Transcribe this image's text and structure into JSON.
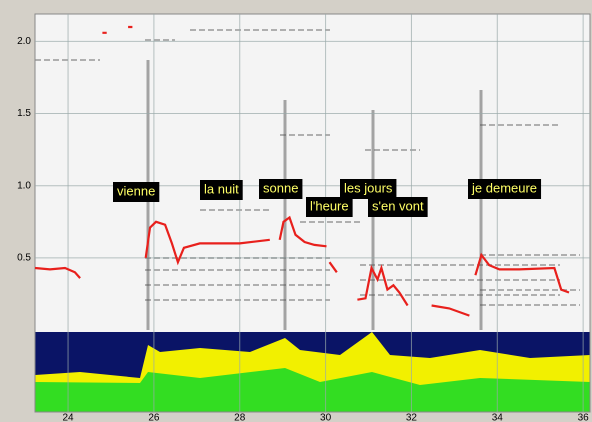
{
  "chart_data": {
    "type": "spectrogram",
    "x": [
      23.23,
      23.58,
      23.93,
      24.16,
      24.28,
      null,
      24.8,
      24.9,
      null,
      25.4,
      25.5,
      null,
      25.81,
      25.91,
      26.05,
      26.26,
      26.42,
      26.56,
      26.7,
      27.07,
      28.0,
      28.7,
      null,
      28.93,
      29.02,
      29.16,
      29.3,
      29.51,
      29.74,
      30.02,
      null,
      30.09,
      30.26,
      null,
      30.74,
      30.93,
      31.07,
      31.21,
      31.3,
      31.44,
      31.58,
      31.72,
      31.91,
      null,
      32.47,
      32.88,
      33.35,
      null,
      33.49,
      33.63,
      33.81,
      34.05,
      34.51,
      35.33,
      35.49,
      35.67
    ],
    "values": [
      0.43,
      0.42,
      0.43,
      0.4,
      0.36,
      null,
      2.06,
      2.06,
      null,
      2.1,
      2.1,
      null,
      0.5,
      0.71,
      0.75,
      0.73,
      0.6,
      0.47,
      0.57,
      0.6,
      0.6,
      0.625,
      null,
      0.625,
      0.75,
      0.78,
      0.66,
      0.61,
      0.59,
      0.58,
      null,
      0.47,
      0.4,
      null,
      0.21,
      0.22,
      0.43,
      0.35,
      0.43,
      0.28,
      0.31,
      0.26,
      0.17,
      null,
      0.17,
      0.15,
      0.1,
      null,
      0.38,
      0.52,
      0.45,
      0.42,
      0.42,
      0.43,
      0.28,
      0.26
    ],
    "color": "#e8201c",
    "xlim": [
      23.23,
      36.16
    ],
    "ylim": [
      0,
      2.19
    ],
    "xticks": [
      24,
      26,
      28,
      30,
      32,
      34,
      36
    ],
    "yticks": [
      {
        "value": 0.5,
        "label": "0.5"
      },
      {
        "value": 1.0,
        "label": "1.0"
      },
      {
        "value": 1.5,
        "label": "1.5"
      },
      {
        "value": 2.0,
        "label": "2.0"
      }
    ],
    "grid": true,
    "annotations": [
      "vienne",
      "la nuit",
      "sonne",
      "l'heure",
      "les jours",
      "s'en vont",
      "je demeure"
    ]
  }
}
